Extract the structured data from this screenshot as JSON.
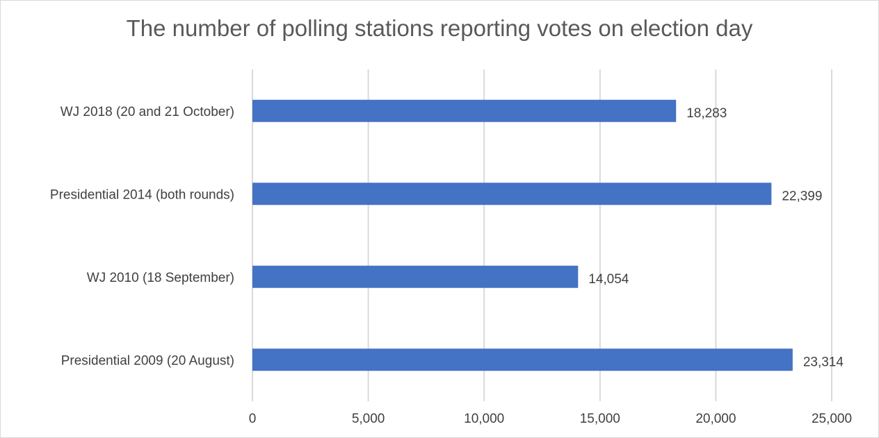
{
  "chart_data": {
    "type": "bar",
    "orientation": "horizontal",
    "title": "The number of polling stations reporting votes on election day",
    "categories": [
      "WJ 2018 (20 and 21 October)",
      "Presidential 2014 (both rounds)",
      "WJ 2010 (18 September)",
      "Presidential 2009 (20 August)"
    ],
    "values": [
      18283,
      22399,
      14054,
      23314
    ],
    "data_labels": [
      "18,283",
      "22,399",
      "14,054",
      "23,314"
    ],
    "xlim": [
      0,
      25000
    ],
    "x_ticks": [
      0,
      5000,
      10000,
      15000,
      20000,
      25000
    ],
    "x_tick_labels": [
      "0",
      "5,000",
      "10,000",
      "15,000",
      "20,000",
      "25,000"
    ],
    "xlabel": "",
    "ylabel": "",
    "grid": true,
    "legend": "none",
    "colors": {
      "bar": "#4472c4",
      "grid": "#d9d9d9",
      "text": "#404040",
      "title": "#595959"
    }
  }
}
